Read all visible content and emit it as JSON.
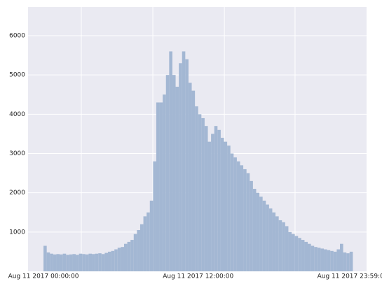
{
  "chart_data": {
    "type": "histogram",
    "bins": [
      0,
      15,
      30,
      45,
      60,
      75,
      90,
      105,
      120,
      135,
      150,
      165,
      180,
      195,
      210,
      225,
      240,
      255,
      270,
      285,
      300,
      315,
      330,
      345,
      360,
      375,
      390,
      405,
      420,
      435,
      450,
      465,
      480,
      495,
      510,
      525,
      540,
      555,
      570,
      585,
      600,
      615,
      630,
      645,
      660,
      675,
      690,
      705,
      720,
      735,
      750,
      765,
      780,
      795,
      810,
      825,
      840,
      855,
      870,
      885,
      900,
      915,
      930,
      945,
      960,
      975,
      990,
      1005,
      1020,
      1035,
      1050,
      1065,
      1080,
      1095,
      1110,
      1125,
      1140,
      1155,
      1170,
      1185,
      1200,
      1215,
      1230,
      1245,
      1260,
      1275,
      1290,
      1305,
      1320,
      1335,
      1350,
      1365,
      1380,
      1395,
      1410,
      1425,
      1440
    ],
    "values": [
      650,
      480,
      450,
      430,
      440,
      430,
      450,
      420,
      430,
      440,
      420,
      450,
      440,
      430,
      450,
      440,
      450,
      460,
      440,
      470,
      500,
      520,
      560,
      600,
      620,
      700,
      750,
      800,
      950,
      1050,
      1200,
      1400,
      1500,
      1800,
      2800,
      4300,
      4300,
      4500,
      5000,
      5600,
      5000,
      4700,
      5300,
      5600,
      5400,
      4800,
      4600,
      4200,
      4000,
      3900,
      3700,
      3300,
      3500,
      3700,
      3600,
      3400,
      3300,
      3200,
      3000,
      2900,
      2800,
      2700,
      2600,
      2500,
      2300,
      2100,
      2000,
      1900,
      1800,
      1700,
      1600,
      1500,
      1400,
      1300,
      1250,
      1150,
      1000,
      950,
      900,
      850,
      800,
      750,
      700,
      650,
      620,
      600,
      580,
      560,
      540,
      520,
      500,
      560,
      700,
      480,
      460,
      500
    ],
    "color": "#a3b7d3",
    "background": "#eaeaf2",
    "xlim": [
      -72,
      1504
    ],
    "ylim": [
      0,
      6730
    ],
    "yticks": [
      1000,
      2000,
      3000,
      4000,
      5000,
      6000
    ],
    "xticks": [
      {
        "value": 0,
        "label": "Aug 11 2017 00:00:00"
      },
      {
        "value": 720,
        "label": "Aug 11 2017 12:00:00"
      },
      {
        "value": 1439,
        "label": "Aug 11 2017 23:59:00"
      }
    ],
    "xgridlines": [
      176,
      509,
      842,
      1171
    ],
    "grid": true
  }
}
